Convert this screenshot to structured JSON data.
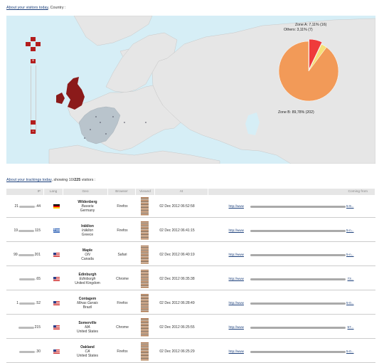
{
  "map_section": {
    "link": "About your visitors today",
    "suffix": ", Country :",
    "zoom": {
      "plus": "+",
      "minus": "−"
    },
    "pie": {
      "zone_a": "Zone A: 7,11% (16)",
      "others": "Others: 3,11% (7)",
      "zone_b": "Zone B: 89,78% (202)",
      "slices": [
        {
          "name": "Zone B",
          "percent": 89.78,
          "color": "#f29a58"
        },
        {
          "name": "Zone A",
          "percent": 7.11,
          "color": "#ef3b3b"
        },
        {
          "name": "Others",
          "percent": 3.11,
          "color": "#f5e07a"
        }
      ]
    },
    "colors": {
      "sea": "#d6eef6",
      "land": "#e6e6e6",
      "highlight": "#8b1a1a",
      "eu": "#b9c4cc"
    }
  },
  "tracking": {
    "link": "About your trackings today",
    "suffix_pre": ", showing 10/",
    "total": "225",
    "suffix_post": " visitors :",
    "columns": [
      "IP",
      "Lang",
      "Geo",
      "Browser",
      "Viewed",
      "At",
      "Coming from"
    ],
    "rows": [
      {
        "ip_start": "21",
        "ip_end": ".44",
        "lang": "de",
        "city": "Wildenberg",
        "region": "Bavaria",
        "country": "Germany",
        "browser": "Firefox",
        "at": "02 Dec 2012 06:52:58",
        "url_start": "http://www",
        "url_end": "5-9..."
      },
      {
        "ip_start": "19",
        "ip_end": "115",
        "lang": "el",
        "city": "Iráklion",
        "region": "Iráklion",
        "country": "Greece",
        "browser": "Firefox",
        "at": "02 Dec 2012 06:41:15",
        "url_start": "http://www",
        "url_end": "5-n..."
      },
      {
        "ip_start": "99",
        "ip_end": "201",
        "lang": "en",
        "city": "Maple",
        "region": "ON",
        "country": "Canada",
        "browser": "Safari",
        "at": "02 Dec 2012 06:40:19",
        "url_start": "http://www",
        "url_end": "5-n..."
      },
      {
        "ip_start": "",
        "ip_end": ".65",
        "lang": "en",
        "city": "Edinburgh",
        "region": "Edinburgh",
        "country": "United Kingdom",
        "browser": "Chrome",
        "at": "02 Dec 2012 06:35:38",
        "url_start": "http://www",
        "url_end": "73..."
      },
      {
        "ip_start": "1",
        "ip_end": ".52",
        "lang": "en",
        "city": "Contagem",
        "region": "Minas Gerais",
        "country": "Brazil",
        "browser": "Firefox",
        "at": "02 Dec 2012 06:28:49",
        "url_start": "http://www",
        "url_end": "5-0..."
      },
      {
        "ip_start": "",
        "ip_end": "215",
        "lang": "en",
        "city": "Somerville",
        "region": "MA",
        "country": "United States",
        "browser": "Chrome",
        "at": "02 Dec 2012 06:25:55",
        "url_start": "http://www",
        "url_end": "57..."
      },
      {
        "ip_start": "",
        "ip_end": ".30",
        "lang": "en",
        "city": "Oakland",
        "region": "CA",
        "country": "United States",
        "browser": "Firefox",
        "at": "02 Dec 2012 06:25:29",
        "url_start": "http://www",
        "url_end": "5-0..."
      }
    ]
  }
}
